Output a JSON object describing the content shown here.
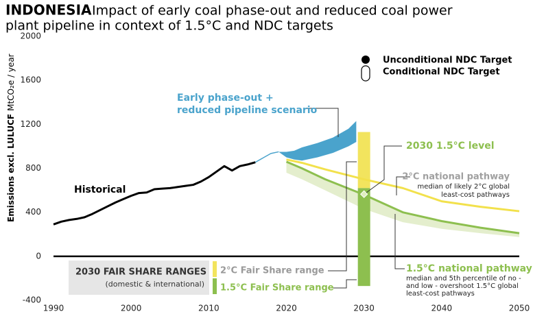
{
  "chart_data": {
    "type": "line",
    "title_bold": "INDONESIA",
    "title": [
      "Impact of early coal phase-out and reduced coal power",
      "plant pipeline in context of 1.5°C and NDC targets"
    ],
    "ylabel_bold": "Emissions excl. LULUCF",
    "ylabel": "MtCO₂e / year",
    "xlim": [
      1990,
      2050
    ],
    "xticks": [
      1990,
      2000,
      2010,
      2020,
      2030,
      2040,
      2050
    ],
    "ylim": [
      -400,
      2000
    ],
    "yticks": [
      -400,
      0,
      400,
      800,
      1200,
      1600,
      2000
    ],
    "historical": {
      "label": "Historical",
      "color": "#000000",
      "x": [
        1990,
        1991,
        1992,
        1993,
        1994,
        1995,
        1996,
        1997,
        1998,
        1999,
        2000,
        2001,
        2002,
        2003,
        2004,
        2005,
        2006,
        2007,
        2008,
        2009,
        2010,
        2011,
        2012,
        2013,
        2014,
        2015,
        2016
      ],
      "values": [
        290,
        315,
        330,
        340,
        355,
        385,
        420,
        455,
        490,
        520,
        550,
        575,
        580,
        610,
        615,
        620,
        630,
        640,
        650,
        680,
        720,
        770,
        820,
        780,
        820,
        835,
        855
      ]
    },
    "scenario": {
      "label": [
        "Early phase-out +",
        "reduced pipeline scenario"
      ],
      "color": "#4aa3cc",
      "lead_x": [
        2016,
        2017,
        2018,
        2019
      ],
      "lead_values": [
        855,
        895,
        935,
        950
      ],
      "x": [
        2019,
        2020,
        2021,
        2022,
        2024,
        2026,
        2028,
        2029
      ],
      "high": [
        950,
        950,
        960,
        990,
        1030,
        1080,
        1160,
        1230
      ],
      "low": [
        950,
        900,
        880,
        870,
        900,
        940,
        1000,
        1040
      ]
    },
    "pathway_2c": {
      "label": "2°C national pathway",
      "note": [
        "median of likely 2°C global",
        "least-cost pathways"
      ],
      "color": "#f2e14c",
      "x": [
        2020,
        2022,
        2025,
        2030,
        2035,
        2040,
        2045,
        2050
      ],
      "values": [
        880,
        850,
        790,
        700,
        620,
        500,
        450,
        410
      ]
    },
    "pathway_15": {
      "label": "1.5°C national pathway",
      "note": [
        "median and 5th percentile of no -",
        "and low - overshoot 1.5°C global",
        "least-cost pathways"
      ],
      "color": "#8dbf4f",
      "band_color": "#e4eecd",
      "x": [
        2020,
        2022,
        2025,
        2030,
        2035,
        2040,
        2045,
        2050
      ],
      "values": [
        860,
        800,
        700,
        560,
        400,
        320,
        260,
        210
      ],
      "low": [
        760,
        700,
        600,
        430,
        310,
        250,
        210,
        175
      ]
    },
    "fair_share_title": "2030 FAIR SHARE RANGES",
    "fair_share_subtitle": "(domestic & international)",
    "fair_share": [
      {
        "name": "2°C Fair Share range",
        "x": 2030,
        "range": [
          620,
          1130
        ],
        "color": "#f2e45e",
        "text_color": "#9a9a9a"
      },
      {
        "name": "1.5°C Fair Share range",
        "x": 2030,
        "range": [
          -270,
          620
        ],
        "color": "#8dbf4f",
        "text_color": "#8dbf4f"
      }
    ],
    "level_15": {
      "label": "2030 1.5°C level",
      "x": 2030,
      "value": 565
    },
    "legend": [
      "Unconditional NDC Target",
      "Conditional NDC Target"
    ]
  }
}
